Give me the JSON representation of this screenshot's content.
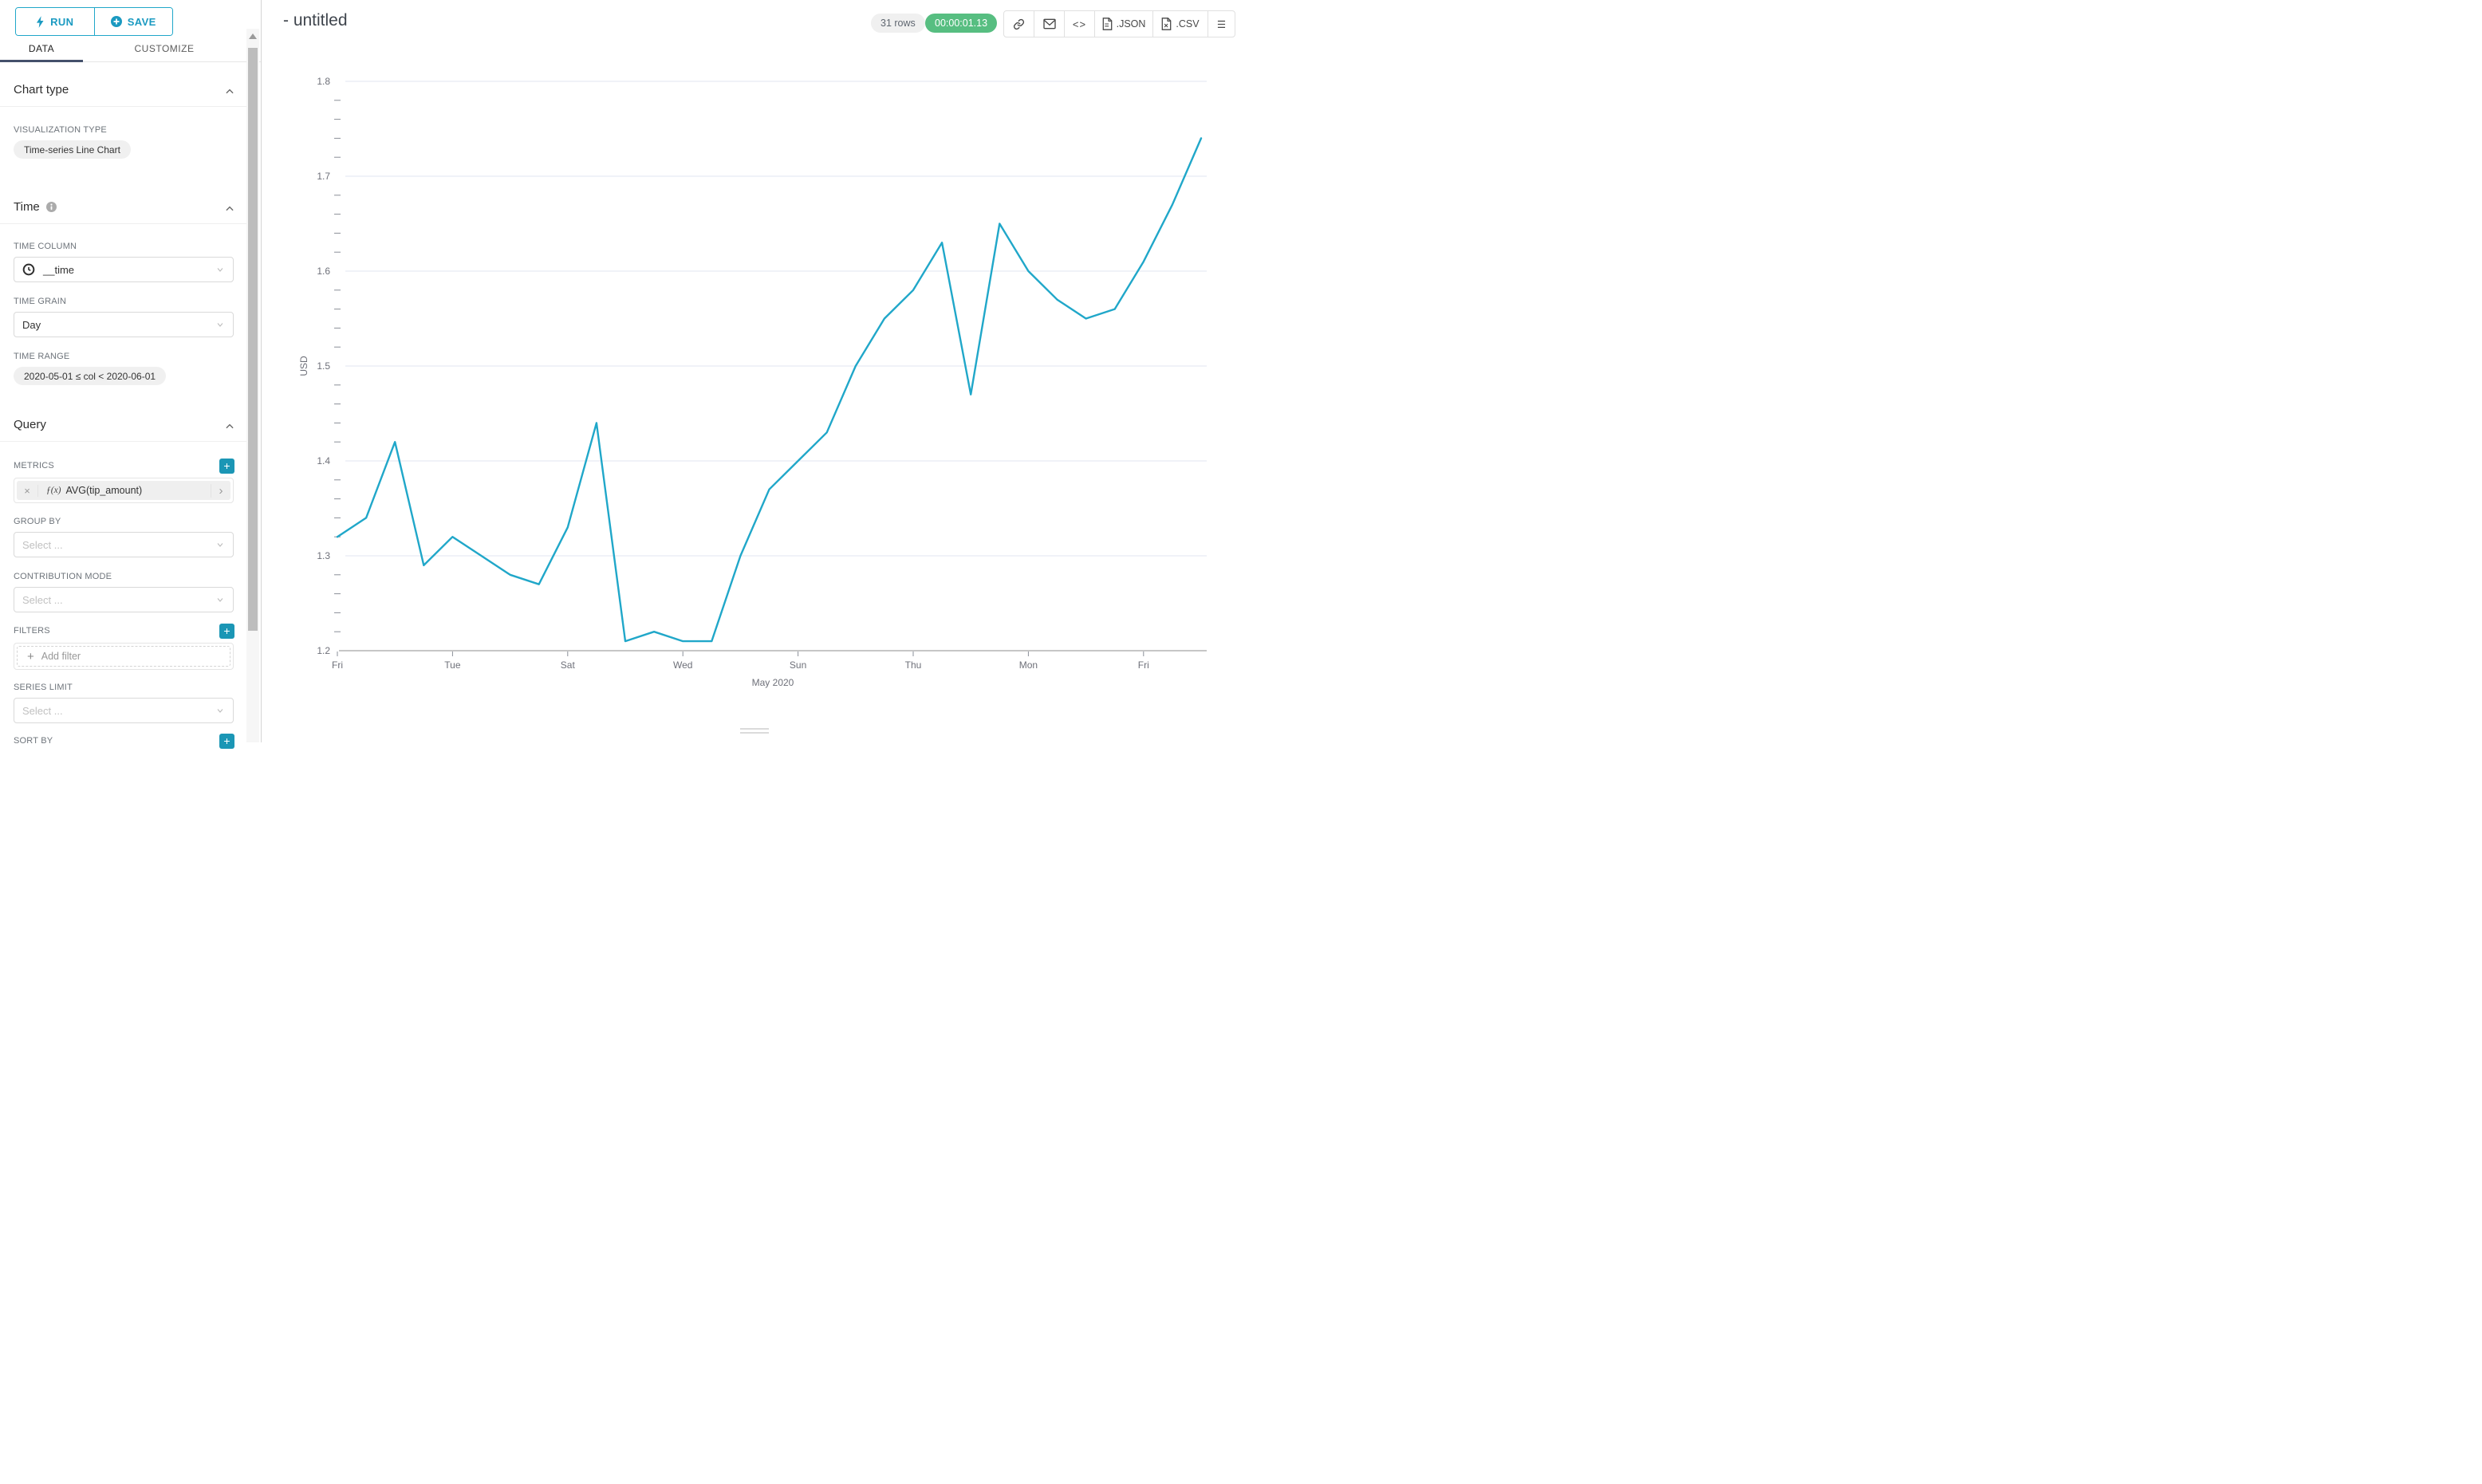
{
  "toolbar": {
    "run_label": "RUN",
    "save_label": "SAVE"
  },
  "tabs": {
    "data": "DATA",
    "customize": "CUSTOMIZE"
  },
  "icons": {
    "plus": "+",
    "close": "×",
    "chevron_right": "›",
    "code": "<>",
    "menu": "☰"
  },
  "panel": {
    "chart_type": {
      "title": "Chart type",
      "viz_type_label": "VISUALIZATION TYPE",
      "viz_type_value": "Time-series Line Chart"
    },
    "time": {
      "title": "Time",
      "time_column_label": "TIME COLUMN",
      "time_column_value": "__time",
      "time_grain_label": "TIME GRAIN",
      "time_grain_value": "Day",
      "time_range_label": "TIME RANGE",
      "time_range_value": "2020-05-01 ≤ col < 2020-06-01"
    },
    "query": {
      "title": "Query",
      "metrics_label": "METRICS",
      "metric_fn": "ƒ(x)",
      "metric_value": "AVG(tip_amount)",
      "group_by_label": "GROUP BY",
      "select_placeholder": "Select ...",
      "contribution_label": "CONTRIBUTION MODE",
      "filters_label": "FILTERS",
      "add_filter_label": "Add filter",
      "series_limit_label": "SERIES LIMIT",
      "sort_by_label": "SORT BY"
    }
  },
  "header": {
    "title": "- untitled",
    "rows_badge": "31 rows",
    "timer_badge": "00:00:01.13",
    "json_label": ".JSON",
    "csv_label": ".CSV"
  },
  "chart_data": {
    "type": "line",
    "series_name": "AVG(tip_amount)",
    "xlabel": "May 2020",
    "ylabel": "USD",
    "ylim": [
      1.2,
      1.8
    ],
    "yticks": [
      1.2,
      1.3,
      1.4,
      1.5,
      1.6,
      1.7,
      1.8
    ],
    "grid": true,
    "line_color": "#20a7c9",
    "x_dates": [
      "2020-05-01",
      "2020-05-02",
      "2020-05-03",
      "2020-05-04",
      "2020-05-05",
      "2020-05-06",
      "2020-05-07",
      "2020-05-08",
      "2020-05-09",
      "2020-05-10",
      "2020-05-11",
      "2020-05-12",
      "2020-05-13",
      "2020-05-14",
      "2020-05-15",
      "2020-05-16",
      "2020-05-17",
      "2020-05-18",
      "2020-05-19",
      "2020-05-20",
      "2020-05-21",
      "2020-05-22",
      "2020-05-23",
      "2020-05-24",
      "2020-05-25",
      "2020-05-26",
      "2020-05-27",
      "2020-05-28",
      "2020-05-29",
      "2020-05-30",
      "2020-05-31"
    ],
    "values": [
      1.32,
      1.34,
      1.42,
      1.29,
      1.32,
      1.3,
      1.28,
      1.27,
      1.33,
      1.44,
      1.21,
      1.22,
      1.21,
      1.21,
      1.3,
      1.37,
      1.4,
      1.43,
      1.5,
      1.55,
      1.58,
      1.63,
      1.47,
      1.65,
      1.6,
      1.57,
      1.55,
      1.56,
      1.61,
      1.67,
      1.74
    ],
    "xticks": [
      {
        "day": 1,
        "label": "Fri"
      },
      {
        "day": 5,
        "label": "Tue"
      },
      {
        "day": 9,
        "label": "Sat"
      },
      {
        "day": 13,
        "label": "Wed"
      },
      {
        "day": 17,
        "label": "Sun"
      },
      {
        "day": 21,
        "label": "Thu"
      },
      {
        "day": 25,
        "label": "Mon"
      },
      {
        "day": 29,
        "label": "Fri"
      }
    ]
  }
}
